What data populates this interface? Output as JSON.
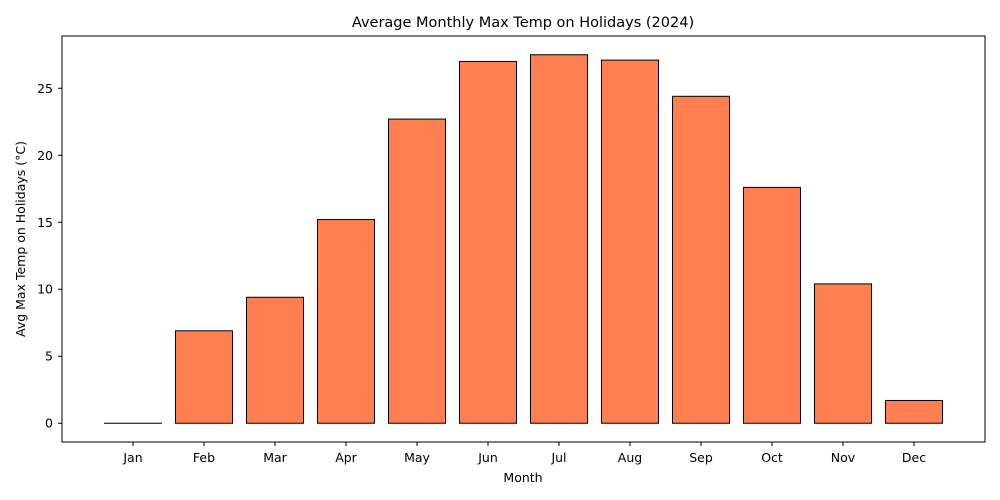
{
  "chart_data": {
    "type": "bar",
    "title": "Average Monthly Max Temp on Holidays (2024)",
    "xlabel": "Month",
    "ylabel": "Avg Max Temp on Holidays (°C)",
    "categories": [
      "Jan",
      "Feb",
      "Mar",
      "Apr",
      "May",
      "Jun",
      "Jul",
      "Aug",
      "Sep",
      "Oct",
      "Nov",
      "Dec"
    ],
    "values": [
      0.0,
      6.9,
      9.4,
      15.2,
      22.7,
      27.0,
      27.5,
      27.1,
      24.4,
      17.6,
      10.4,
      1.7
    ],
    "yticks": [
      0,
      5,
      10,
      15,
      20,
      25
    ],
    "ylim": [
      -1.4,
      28.9
    ],
    "grid": false,
    "legend": "none",
    "colors": {
      "bar_fill": "#ff7f50",
      "bar_edge": "#000000"
    }
  }
}
